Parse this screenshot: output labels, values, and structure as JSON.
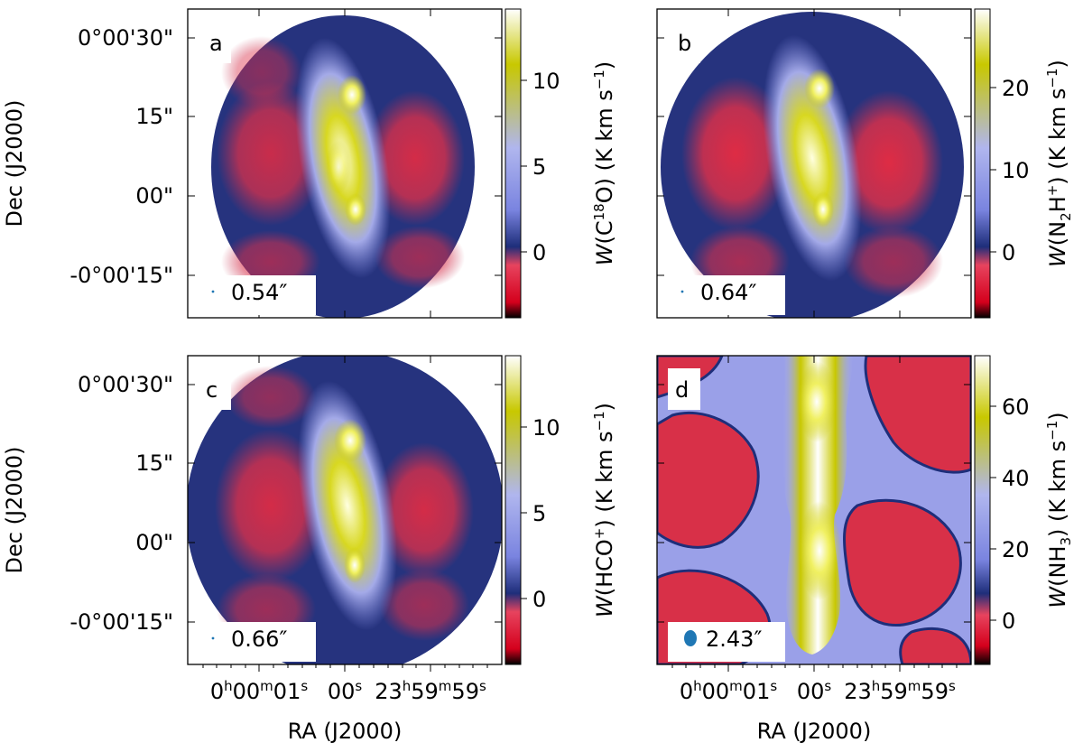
{
  "figure": {
    "panels": [
      {
        "letter": "a",
        "beam": "0.54″",
        "cbar": {
          "ticks": [
            "10",
            "5",
            "0"
          ],
          "label_parts": [
            "W",
            "(C",
            "18",
            "O)  (K km s",
            "−1",
            ")"
          ]
        },
        "ylabel": "Dec (J2000)",
        "xlabel": "",
        "yticks": [
          "0°00'30\"",
          "15\"",
          "00\"",
          "-0°00'15\""
        ],
        "xticks": []
      },
      {
        "letter": "b",
        "beam": "0.64″",
        "cbar": {
          "ticks": [
            "20",
            "10",
            "0"
          ],
          "label_parts": [
            "W",
            "(N",
            "2",
            "H",
            "+",
            ")  (K km s",
            "−1",
            ")"
          ]
        },
        "ylabel": "",
        "xlabel": "",
        "yticks": [],
        "xticks": []
      },
      {
        "letter": "c",
        "beam": "0.66″",
        "cbar": {
          "ticks": [
            "10",
            "5",
            "0"
          ],
          "label_parts": [
            "W",
            "(HCO",
            "+",
            ")  (K km s",
            "−1",
            ")"
          ]
        },
        "ylabel": "Dec (J2000)",
        "xlabel": "RA (J2000)",
        "yticks": [
          "0°00'30\"",
          "15\"",
          "00\"",
          "-0°00'15\""
        ],
        "xticks": [
          "0h00m01s",
          "00s",
          "23h59m59s"
        ]
      },
      {
        "letter": "d",
        "beam": "2.43″",
        "cbar": {
          "ticks": [
            "60",
            "40",
            "20",
            "0"
          ],
          "label_parts": [
            "W",
            "(NH",
            "3",
            ")  (K km s",
            "−1",
            ")"
          ]
        },
        "ylabel": "",
        "xlabel": "RA (J2000)",
        "yticks": [],
        "xticks": [
          "0h00m01s",
          "00s",
          "23h59m59s"
        ]
      }
    ],
    "colormap": [
      "#000000",
      "#d4001c",
      "#e7435e",
      "#1e2e7a",
      "#7a84e0",
      "#b0b6ee",
      "#c8c800",
      "#ffffff"
    ]
  },
  "chart_data": [
    {
      "type": "heatmap",
      "panel": "a",
      "xlabel": "",
      "ylabel": "Dec (J2000)",
      "colorbar_label": "W(C18O) (K km s-1)",
      "colorbar_range": [
        -4,
        14
      ],
      "colorbar_ticks": [
        10,
        5,
        0
      ],
      "beam_arcsec": 0.54
    },
    {
      "type": "heatmap",
      "panel": "b",
      "xlabel": "",
      "ylabel": "",
      "colorbar_label": "W(N2H+) (K km s-1)",
      "colorbar_range": [
        -8,
        29
      ],
      "colorbar_ticks": [
        20,
        10,
        0
      ],
      "beam_arcsec": 0.64
    },
    {
      "type": "heatmap",
      "panel": "c",
      "xlabel": "RA (J2000)",
      "ylabel": "Dec (J2000)",
      "colorbar_label": "W(HCO+) (K km s-1)",
      "colorbar_range": [
        -4,
        14
      ],
      "colorbar_ticks": [
        10,
        5,
        0
      ],
      "beam_arcsec": 0.66
    },
    {
      "type": "heatmap",
      "panel": "d",
      "xlabel": "RA (J2000)",
      "ylabel": "",
      "colorbar_label": "W(NH3) (K km s-1)",
      "colorbar_range": [
        -14,
        72
      ],
      "colorbar_ticks": [
        60,
        40,
        20,
        0
      ],
      "beam_arcsec": 2.43
    }
  ]
}
